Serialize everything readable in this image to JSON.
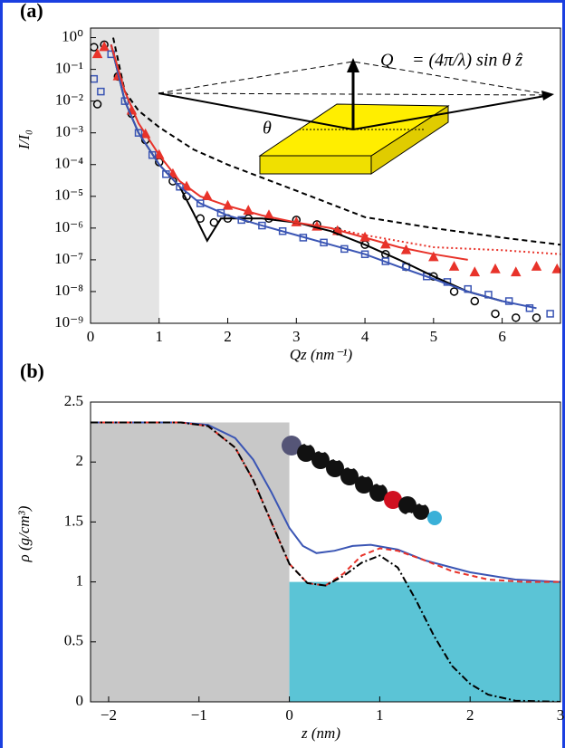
{
  "chart_data": [
    {
      "type": "line",
      "panel_label": "(a)",
      "xlabel": "Qz (nm⁻¹)",
      "ylabel": "I/I₀",
      "log_y": true,
      "xlim": [
        0,
        6.85
      ],
      "ylim": [
        1e-09,
        2
      ],
      "xticks": [
        0,
        1,
        2,
        3,
        4,
        5,
        6
      ],
      "yticks": [
        {
          "value": 1e-09,
          "label": "10⁻⁹"
        },
        {
          "value": 1e-08,
          "label": "10⁻⁸"
        },
        {
          "value": 1e-07,
          "label": "10⁻⁷"
        },
        {
          "value": 1e-06,
          "label": "10⁻⁶"
        },
        {
          "value": 1e-05,
          "label": "10⁻⁵"
        },
        {
          "value": 0.0001,
          "label": "10⁻⁴"
        },
        {
          "value": 0.001,
          "label": "10⁻³"
        },
        {
          "value": 0.01,
          "label": "10⁻²"
        },
        {
          "value": 0.1,
          "label": "10⁻¹"
        },
        {
          "value": 1,
          "label": "10⁰"
        }
      ],
      "regions": [
        {
          "x": [
            0,
            1
          ],
          "color": "#e4e4e4"
        }
      ],
      "annotations": [
        "Q⃗ = (4π/λ) sin θ ẑ",
        "θ"
      ],
      "series": [
        {
          "style": "markers",
          "marker": "circle",
          "color": "#000000",
          "x": [
            0.05,
            0.1,
            0.2,
            0.4,
            0.6,
            0.8,
            1.0,
            1.2,
            1.4,
            1.6,
            1.8,
            2.0,
            2.3,
            2.6,
            3.0,
            3.3,
            3.6,
            4.0,
            4.3,
            4.6,
            5.0,
            5.3,
            5.6,
            5.9,
            6.2,
            6.5
          ],
          "values": [
            0.5,
            0.008,
            0.6,
            0.06,
            0.004,
            0.0006,
            0.00012,
            3e-05,
            1e-05,
            2e-06,
            1.5e-06,
            2e-06,
            2e-06,
            2e-06,
            1.8e-06,
            1.3e-06,
            8e-07,
            3e-07,
            1.5e-07,
            6e-08,
            3e-08,
            1e-08,
            5e-09,
            2e-09,
            1.5e-09,
            1.5e-09
          ]
        },
        {
          "style": "markers",
          "marker": "triangle",
          "color": "#e8332a",
          "x": [
            0.1,
            0.2,
            0.4,
            0.6,
            0.8,
            1.0,
            1.2,
            1.4,
            1.7,
            2.0,
            2.3,
            2.6,
            3.0,
            3.3,
            3.6,
            4.0,
            4.3,
            4.6,
            5.0,
            5.3,
            5.6,
            5.9,
            6.2,
            6.5,
            6.8
          ],
          "values": [
            0.3,
            0.5,
            0.06,
            0.005,
            0.0009,
            0.0002,
            5e-05,
            2e-05,
            1e-05,
            5e-06,
            3.5e-06,
            2.5e-06,
            1.5e-06,
            1.1e-06,
            8e-07,
            5e-07,
            3e-07,
            2e-07,
            1.2e-07,
            6e-08,
            4e-08,
            5e-08,
            4e-08,
            6e-08,
            5e-08
          ]
        },
        {
          "style": "markers",
          "marker": "square",
          "color": "#3a55b4",
          "x": [
            0.05,
            0.15,
            0.3,
            0.5,
            0.7,
            0.9,
            1.1,
            1.3,
            1.6,
            1.9,
            2.2,
            2.5,
            2.8,
            3.1,
            3.4,
            3.7,
            4.0,
            4.3,
            4.6,
            4.9,
            5.2,
            5.5,
            5.8,
            6.1,
            6.4,
            6.7
          ],
          "values": [
            0.05,
            0.02,
            0.3,
            0.01,
            0.001,
            0.0002,
            5e-05,
            2e-05,
            6e-06,
            3e-06,
            1.8e-06,
            1.2e-06,
            8e-07,
            5e-07,
            3.5e-07,
            2.2e-07,
            1.5e-07,
            9e-08,
            6e-08,
            3e-08,
            2e-08,
            1.2e-08,
            8e-09,
            5e-09,
            3e-09,
            2e-09
          ]
        },
        {
          "style": "dashed",
          "color": "#000000",
          "x": [
            0.33,
            0.5,
            0.7,
            1.0,
            1.5,
            2.0,
            3.0,
            4.0,
            5.0,
            6.0,
            6.85
          ],
          "values": [
            1,
            0.02,
            0.005,
            0.0015,
            0.0003,
            0.0001,
            1.5e-05,
            2.2e-06,
            1e-06,
            5e-07,
            3e-07
          ]
        },
        {
          "style": "solid",
          "color": "#000000",
          "x": [
            0.3,
            0.5,
            0.7,
            1.0,
            1.3,
            1.5,
            1.7,
            1.9,
            2.2,
            2.5,
            3.0,
            3.5,
            4.0,
            4.5,
            5.0,
            5.5,
            6.0
          ],
          "values": [
            0.6,
            0.01,
            0.001,
            0.0001,
            2e-05,
            3e-06,
            4e-07,
            2e-06,
            2e-06,
            2e-06,
            1.5e-06,
            8e-07,
            3e-07,
            1e-07,
            3e-08,
            1e-08,
            5e-09
          ]
        },
        {
          "style": "solid",
          "color": "#3a55b4",
          "x": [
            0.3,
            0.5,
            0.7,
            1.0,
            1.3,
            1.6,
            2.0,
            2.5,
            3.0,
            3.5,
            4.0,
            4.5,
            5.0,
            5.5,
            6.0,
            6.5
          ],
          "values": [
            0.6,
            0.01,
            0.001,
            0.0001,
            2e-05,
            6e-06,
            2.5e-06,
            1.2e-06,
            6e-07,
            3e-07,
            1.5e-07,
            6e-08,
            2.5e-08,
            1e-08,
            5e-09,
            3e-09
          ]
        },
        {
          "style": "solid",
          "color": "#e8332a",
          "x": [
            0.3,
            0.5,
            0.7,
            1.0,
            1.3,
            1.6,
            2.0,
            2.5,
            3.0,
            3.5,
            4.0,
            4.5,
            5.0,
            5.5
          ],
          "values": [
            0.6,
            0.02,
            0.002,
            0.0002,
            3e-05,
            1e-05,
            5e-06,
            2.5e-06,
            1.5e-06,
            1e-06,
            5e-07,
            2.5e-07,
            1.5e-07,
            1e-07
          ]
        },
        {
          "style": "dotted",
          "color": "#e8332a",
          "x": [
            3.5,
            4.0,
            5.0,
            6.0,
            6.85
          ],
          "values": [
            1e-06,
            6e-07,
            2.5e-07,
            2e-07,
            1.5e-07
          ]
        }
      ]
    },
    {
      "type": "line",
      "panel_label": "(b)",
      "xlabel": "z (nm)",
      "ylabel": "ρ (g/cm³)",
      "log_y": false,
      "xlim": [
        -2.2,
        3
      ],
      "ylim": [
        0,
        2.5
      ],
      "xticks": [
        {
          "value": -2,
          "label": "−2"
        },
        {
          "value": -1,
          "label": "−1"
        },
        0,
        1,
        2,
        3
      ],
      "yticks": [
        0,
        0.5,
        1,
        1.5,
        2,
        2.5
      ],
      "regions": [
        {
          "x": [
            -2.2,
            0
          ],
          "y": [
            0,
            2.33
          ],
          "color": "#c8c8c8"
        },
        {
          "x": [
            0,
            3
          ],
          "y": [
            0,
            1
          ],
          "color": "#5bc4d6"
        }
      ],
      "series": [
        {
          "style": "solid",
          "color": "#3a55b4",
          "x": [
            -2.2,
            -1.2,
            -0.9,
            -0.6,
            -0.4,
            -0.2,
            0,
            0.15,
            0.3,
            0.5,
            0.7,
            0.9,
            1.2,
            1.5,
            2.0,
            2.5,
            3.0
          ],
          "values": [
            2.33,
            2.33,
            2.31,
            2.2,
            2.02,
            1.75,
            1.45,
            1.3,
            1.24,
            1.26,
            1.3,
            1.31,
            1.27,
            1.18,
            1.08,
            1.02,
            1.0
          ]
        },
        {
          "style": "dashed",
          "color": "#e8332a",
          "x": [
            -2.2,
            -1.2,
            -0.9,
            -0.6,
            -0.4,
            -0.2,
            0,
            0.2,
            0.4,
            0.6,
            0.8,
            1.0,
            1.2,
            1.5,
            1.8,
            2.2,
            2.6,
            3.0
          ],
          "values": [
            2.33,
            2.33,
            2.3,
            2.12,
            1.85,
            1.5,
            1.15,
            0.99,
            0.97,
            1.07,
            1.22,
            1.28,
            1.26,
            1.18,
            1.09,
            1.02,
            1.0,
            1.0
          ]
        },
        {
          "style": "dashdot",
          "color": "#000000",
          "x": [
            -2.2,
            -1.2,
            -0.9,
            -0.6,
            -0.4,
            -0.2,
            0,
            0.2,
            0.4,
            0.6,
            0.8,
            1.0,
            1.2,
            1.4,
            1.6,
            1.8,
            2.0,
            2.2,
            2.5,
            3.0
          ],
          "values": [
            2.33,
            2.33,
            2.3,
            2.12,
            1.85,
            1.5,
            1.15,
            0.99,
            0.97,
            1.05,
            1.16,
            1.22,
            1.12,
            0.85,
            0.55,
            0.3,
            0.15,
            0.06,
            0.01,
            0
          ]
        }
      ]
    }
  ]
}
